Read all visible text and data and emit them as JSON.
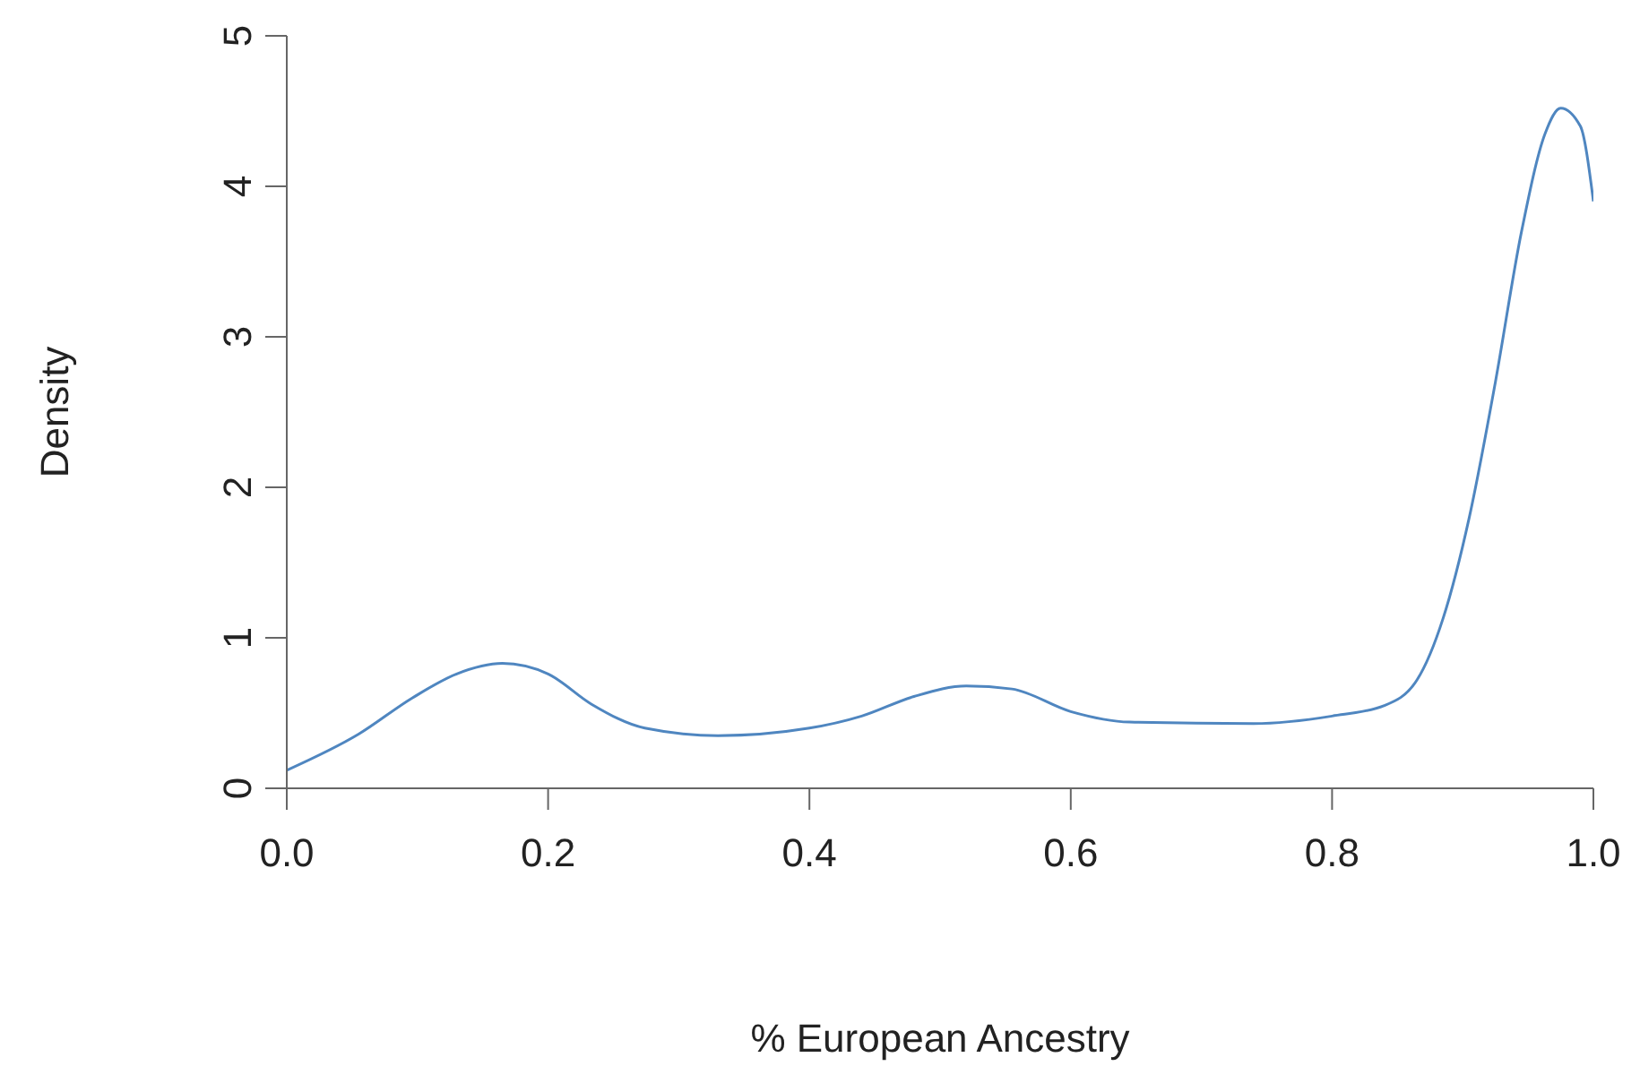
{
  "chart_data": {
    "type": "line",
    "xlabel": "% European Ancestry",
    "ylabel": "Density",
    "x": [
      0,
      0.055,
      0.096,
      0.13,
      0.165,
      0.2,
      0.233,
      0.274,
      0.33,
      0.4,
      0.44,
      0.48,
      0.52,
      0.555,
      0.6,
      0.645,
      0.74,
      0.8,
      0.84,
      0.865,
      0.885,
      0.905,
      0.925,
      0.945,
      0.963,
      0.975,
      0.99,
      1.0
    ],
    "series": [
      {
        "color": "#4f86c0",
        "values": [
          0.12,
          0.36,
          0.6,
          0.76,
          0.83,
          0.76,
          0.56,
          0.4,
          0.35,
          0.4,
          0.48,
          0.61,
          0.68,
          0.66,
          0.51,
          0.44,
          0.43,
          0.48,
          0.55,
          0.72,
          1.13,
          1.8,
          2.7,
          3.7,
          4.35,
          4.52,
          4.4,
          3.9
        ]
      }
    ],
    "xlim": [
      0,
      1
    ],
    "xticks": [
      {
        "value": 0,
        "label": "0.0"
      },
      0.2,
      0.4,
      0.6,
      0.8,
      {
        "value": 1,
        "label": "1.0"
      }
    ],
    "ylim": [
      0,
      5
    ],
    "yticks": [
      0,
      1,
      2,
      3,
      4,
      5
    ],
    "grid": false,
    "legend": false,
    "marker": "none",
    "line_style": "solid"
  }
}
